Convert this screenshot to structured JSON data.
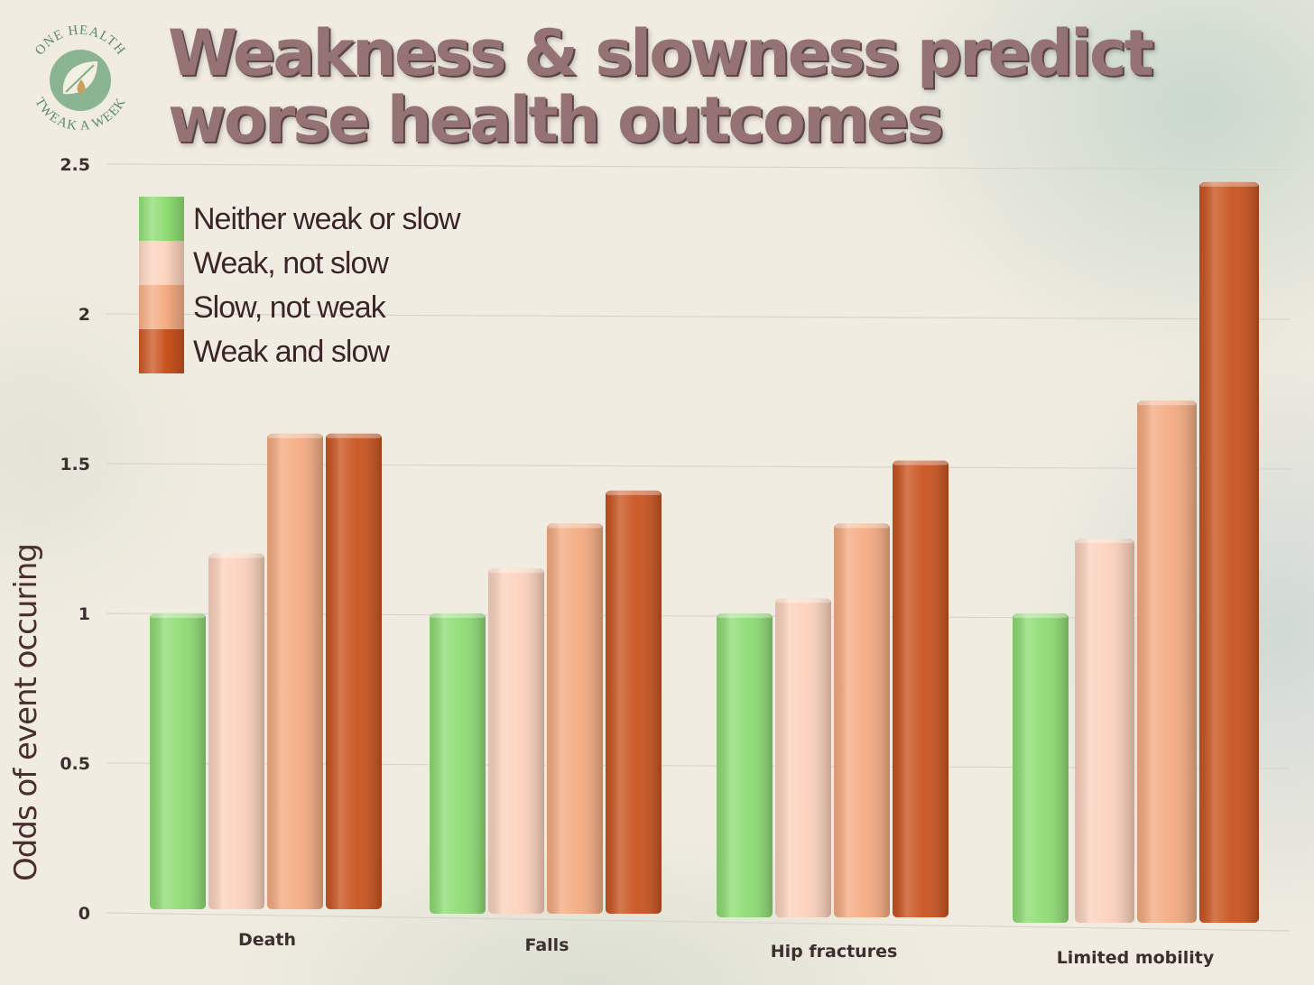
{
  "title_lines": [
    "Weakness & slowness predict",
    "worse health outcomes"
  ],
  "logo": {
    "text_top": "ONE HEALTH",
    "text_bottom": "TWEAK A WEEK",
    "icon": "leaf-drop-icon"
  },
  "colors": {
    "neither": "#8fdc74",
    "weak_not_slow": "#fcd2bd",
    "slow_not_weak": "#f4ab82",
    "weak_and_slow": "#c9531f"
  },
  "chart_data": {
    "type": "bar",
    "ylabel": "Odds of event occuring",
    "xlabel": "",
    "ylim": [
      0,
      2.5
    ],
    "yticks": [
      "0",
      "0.5",
      "1",
      "1.5",
      "2",
      "2.5"
    ],
    "grid": true,
    "legend_position": "top-left",
    "categories": [
      "Death",
      "Falls",
      "Hip fractures",
      "Limited mobility"
    ],
    "series": [
      {
        "name": "Neither weak or slow",
        "color": "#8fdc74",
        "values": [
          1.0,
          1.0,
          1.0,
          1.0
        ]
      },
      {
        "name": "Weak, not slow",
        "color": "#fcd2bd",
        "values": [
          1.2,
          1.15,
          1.05,
          1.25
        ]
      },
      {
        "name": "Slow, not weak",
        "color": "#f4ab82",
        "values": [
          1.6,
          1.3,
          1.3,
          1.71
        ]
      },
      {
        "name": "Weak and slow",
        "color": "#c9531f",
        "values": [
          1.6,
          1.41,
          1.51,
          2.44
        ]
      }
    ]
  }
}
